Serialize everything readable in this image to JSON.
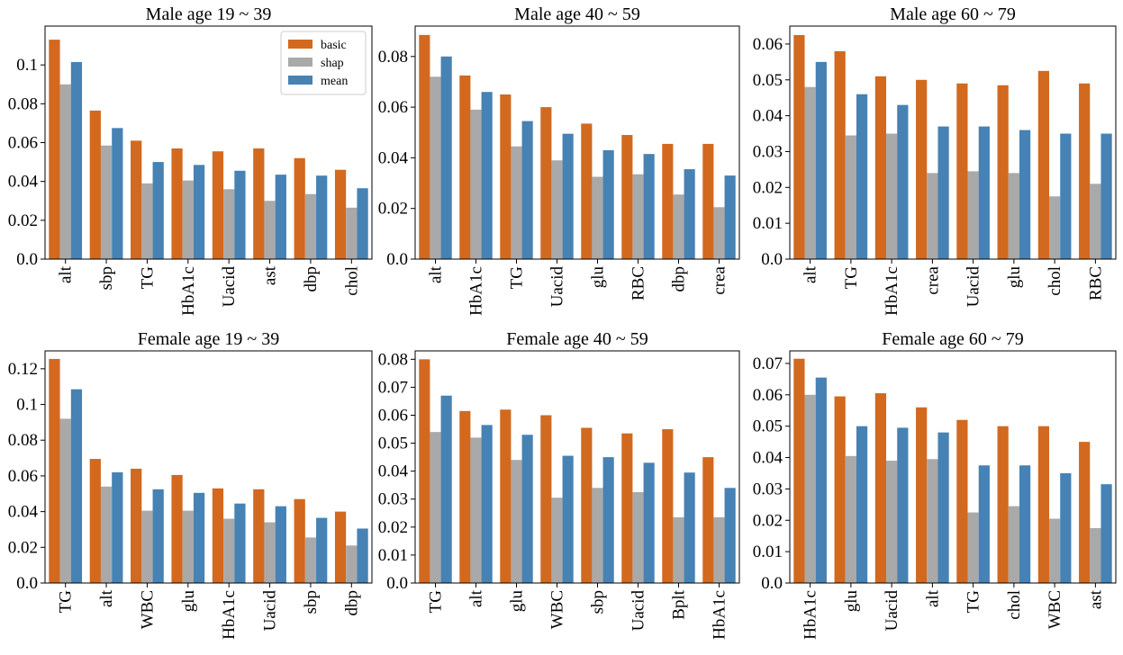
{
  "colors": {
    "basic": "#d2691e",
    "shap": "#a9a9a9",
    "mean": "#4682b4"
  },
  "legend": [
    {
      "key": "basic",
      "label": "basic"
    },
    {
      "key": "shap",
      "label": "shap"
    },
    {
      "key": "mean",
      "label": "mean"
    }
  ],
  "chart_data": [
    {
      "type": "bar",
      "title": "Male age 19 ~ 39",
      "categories": [
        "alt",
        "sbp",
        "TG",
        "HbA1c",
        "Uacid",
        "ast",
        "dbp",
        "chol"
      ],
      "series": [
        {
          "name": "basic",
          "values": [
            0.113,
            0.0765,
            0.061,
            0.057,
            0.0555,
            0.057,
            0.052,
            0.046
          ]
        },
        {
          "name": "shap",
          "values": [
            0.09,
            0.0585,
            0.039,
            0.0405,
            0.036,
            0.03,
            0.0335,
            0.0265
          ]
        },
        {
          "name": "mean",
          "values": [
            0.1015,
            0.0675,
            0.05,
            0.0485,
            0.0455,
            0.0435,
            0.043,
            0.0365
          ]
        }
      ],
      "ylim": [
        0,
        0.12
      ],
      "yticks": [
        0,
        0.02,
        0.04,
        0.06,
        0.08,
        0.1
      ],
      "ytick_labels": [
        "0.0",
        "0.02",
        "0.04",
        "0.06",
        "0.08",
        "0.1"
      ],
      "xlabel": "",
      "ylabel": "",
      "legend": true
    },
    {
      "type": "bar",
      "title": "Male age 40 ~ 59",
      "categories": [
        "alt",
        "HbA1c",
        "TG",
        "Uacid",
        "glu",
        "RBC",
        "dbp",
        "crea"
      ],
      "series": [
        {
          "name": "basic",
          "values": [
            0.0885,
            0.0725,
            0.065,
            0.06,
            0.0535,
            0.049,
            0.0455,
            0.0455
          ]
        },
        {
          "name": "shap",
          "values": [
            0.072,
            0.059,
            0.0445,
            0.039,
            0.0325,
            0.0335,
            0.0255,
            0.0205
          ]
        },
        {
          "name": "mean",
          "values": [
            0.08,
            0.066,
            0.0545,
            0.0495,
            0.043,
            0.0415,
            0.0355,
            0.033
          ]
        }
      ],
      "ylim": [
        0,
        0.092
      ],
      "yticks": [
        0,
        0.02,
        0.04,
        0.06,
        0.08
      ],
      "ytick_labels": [
        "0.0",
        "0.02",
        "0.04",
        "0.06",
        "0.08"
      ],
      "xlabel": "",
      "ylabel": "",
      "legend": false
    },
    {
      "type": "bar",
      "title": "Male age 60 ~ 79",
      "categories": [
        "alt",
        "TG",
        "HbA1c",
        "crea",
        "Uacid",
        "glu",
        "chol",
        "RBC"
      ],
      "series": [
        {
          "name": "basic",
          "values": [
            0.0625,
            0.058,
            0.051,
            0.05,
            0.049,
            0.0485,
            0.0525,
            0.049
          ]
        },
        {
          "name": "shap",
          "values": [
            0.048,
            0.0345,
            0.035,
            0.024,
            0.0245,
            0.024,
            0.0175,
            0.021
          ]
        },
        {
          "name": "mean",
          "values": [
            0.055,
            0.046,
            0.043,
            0.037,
            0.037,
            0.036,
            0.035,
            0.035
          ]
        }
      ],
      "ylim": [
        0,
        0.065
      ],
      "yticks": [
        0,
        0.01,
        0.02,
        0.03,
        0.04,
        0.05,
        0.06
      ],
      "ytick_labels": [
        "0.0",
        "0.01",
        "0.02",
        "0.03",
        "0.04",
        "0.05",
        "0.06"
      ],
      "xlabel": "",
      "ylabel": "",
      "legend": false
    },
    {
      "type": "bar",
      "title": "Female age 19 ~ 39",
      "categories": [
        "TG",
        "alt",
        "WBC",
        "glu",
        "HbA1c",
        "Uacid",
        "sbp",
        "dbp"
      ],
      "series": [
        {
          "name": "basic",
          "values": [
            0.1255,
            0.0695,
            0.064,
            0.0605,
            0.053,
            0.0525,
            0.047,
            0.04
          ]
        },
        {
          "name": "shap",
          "values": [
            0.092,
            0.054,
            0.0405,
            0.0405,
            0.036,
            0.034,
            0.0255,
            0.021
          ]
        },
        {
          "name": "mean",
          "values": [
            0.1085,
            0.062,
            0.0525,
            0.0505,
            0.0445,
            0.043,
            0.0365,
            0.0305
          ]
        }
      ],
      "ylim": [
        0,
        0.13
      ],
      "yticks": [
        0,
        0.02,
        0.04,
        0.06,
        0.08,
        0.1,
        0.12
      ],
      "ytick_labels": [
        "0.0",
        "0.02",
        "0.04",
        "0.06",
        "0.08",
        "0.1",
        "0.12"
      ],
      "xlabel": "",
      "ylabel": "",
      "legend": false
    },
    {
      "type": "bar",
      "title": "Female age 40 ~ 59",
      "categories": [
        "TG",
        "alt",
        "glu",
        "WBC",
        "sbp",
        "Uacid",
        "Bplt",
        "HbA1c"
      ],
      "series": [
        {
          "name": "basic",
          "values": [
            0.08,
            0.0615,
            0.062,
            0.06,
            0.0555,
            0.0535,
            0.055,
            0.045
          ]
        },
        {
          "name": "shap",
          "values": [
            0.054,
            0.052,
            0.044,
            0.0305,
            0.034,
            0.0325,
            0.0235,
            0.0235
          ]
        },
        {
          "name": "mean",
          "values": [
            0.067,
            0.0565,
            0.053,
            0.0455,
            0.045,
            0.043,
            0.0395,
            0.034
          ]
        }
      ],
      "ylim": [
        0,
        0.083
      ],
      "yticks": [
        0,
        0.01,
        0.02,
        0.03,
        0.04,
        0.05,
        0.06,
        0.07,
        0.08
      ],
      "ytick_labels": [
        "0.0",
        "0.01",
        "0.02",
        "0.03",
        "0.04",
        "0.05",
        "0.06",
        "0.07",
        "0.08"
      ],
      "xlabel": "",
      "ylabel": "",
      "legend": false
    },
    {
      "type": "bar",
      "title": "Female age 60 ~ 79",
      "categories": [
        "HbA1c",
        "glu",
        "Uacid",
        "alt",
        "TG",
        "chol",
        "WBC",
        "ast"
      ],
      "series": [
        {
          "name": "basic",
          "values": [
            0.0715,
            0.0595,
            0.0605,
            0.056,
            0.052,
            0.05,
            0.05,
            0.045
          ]
        },
        {
          "name": "shap",
          "values": [
            0.06,
            0.0405,
            0.039,
            0.0395,
            0.0225,
            0.0245,
            0.0205,
            0.0175
          ]
        },
        {
          "name": "mean",
          "values": [
            0.0655,
            0.05,
            0.0495,
            0.048,
            0.0375,
            0.0375,
            0.035,
            0.0315
          ]
        }
      ],
      "ylim": [
        0,
        0.074
      ],
      "yticks": [
        0,
        0.01,
        0.02,
        0.03,
        0.04,
        0.05,
        0.06,
        0.07
      ],
      "ytick_labels": [
        "0.0",
        "0.01",
        "0.02",
        "0.03",
        "0.04",
        "0.05",
        "0.06",
        "0.07"
      ],
      "xlabel": "",
      "ylabel": "",
      "legend": false
    }
  ]
}
